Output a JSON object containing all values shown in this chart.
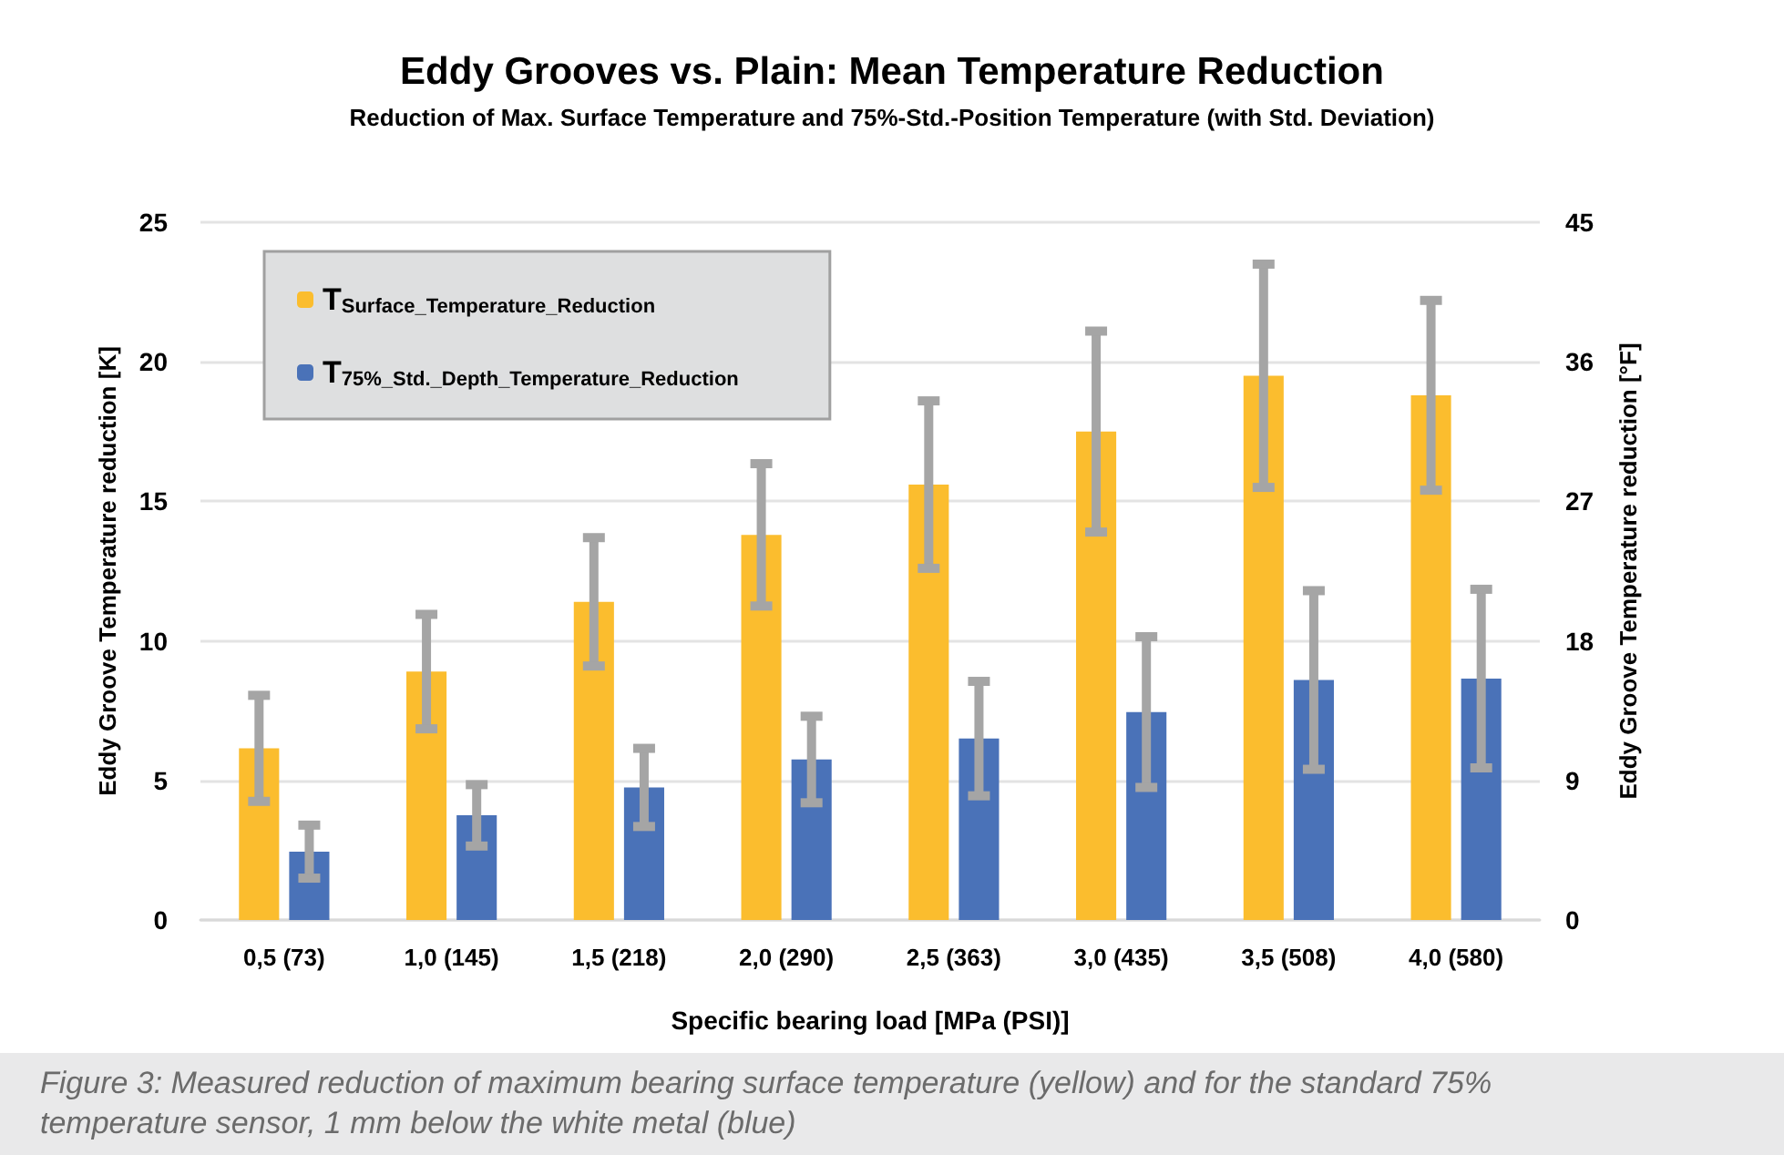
{
  "chart_data": {
    "type": "bar",
    "title": "Eddy Grooves vs. Plain: Mean Temperature Reduction",
    "subtitle": "Reduction of Max. Surface Temperature and 75%-Std.-Position Temperature (with Std. Deviation)",
    "xlabel": "Specific bearing load [MPa (PSI)]",
    "ylabel": "Eddy Groove Temperature reduction [K]",
    "y2label": "Eddy Groove Temperature reduction [°F]",
    "annotations": [
      "Figure 3: Measured reduction of maximum bearing surface temperature (yellow) and for the standard 75% temperature sensor, 1 mm below the white metal (blue)"
    ],
    "categories": [
      "0,5 (73)",
      "1,0 (145)",
      "1,5 (218)",
      "2,0 (290)",
      "2,5 (363)",
      "3,0 (435)",
      "3,5 (508)",
      "4,0 (580)"
    ],
    "series": [
      {
        "name": "T$_{Surface_Temperature_Reduction}$",
        "color": "#fbbd2e",
        "values": [
          6.15,
          8.9,
          11.4,
          13.8,
          15.6,
          17.5,
          19.5,
          18.8
        ],
        "errors": [
          1.9,
          2.05,
          2.3,
          2.55,
          3.0,
          3.6,
          4.0,
          3.4
        ]
      },
      {
        "name": "T$_{75%_Std._Depth_Temperature_Reduction}$",
        "color": "#4a72b8",
        "values": [
          2.45,
          3.75,
          4.75,
          5.75,
          6.5,
          7.45,
          8.6,
          8.65
        ],
        "errors": [
          0.95,
          1.1,
          1.4,
          1.55,
          2.05,
          2.7,
          3.2,
          3.2
        ]
      }
    ],
    "ylim": [
      0,
      25
    ],
    "yticks": [
      0,
      5,
      10,
      15,
      20,
      25
    ],
    "y2lim": [
      0,
      45
    ],
    "y2ticks": [
      0,
      9,
      18,
      27,
      36,
      45
    ],
    "grid": "y",
    "legend": "top left"
  }
}
